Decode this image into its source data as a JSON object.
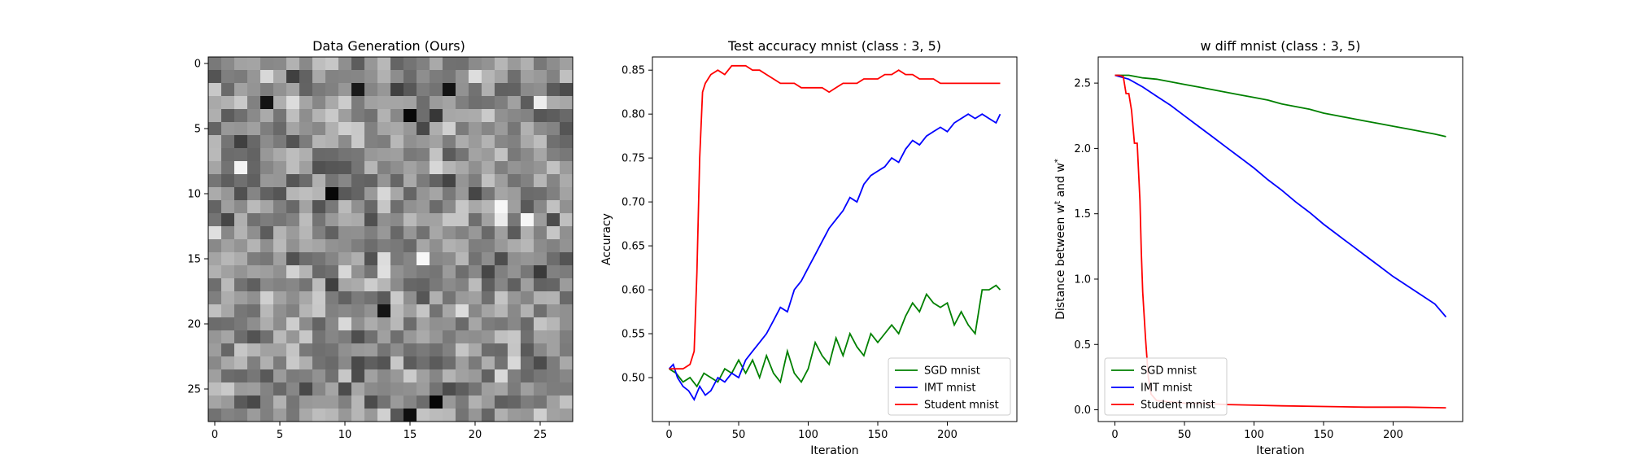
{
  "chart_data": [
    {
      "type": "heatmap",
      "title": "Data Generation (Ours)",
      "colormap": "gray",
      "shape": [
        28,
        28
      ],
      "xticks": [
        "0",
        "5",
        "10",
        "15",
        "20",
        "25"
      ],
      "yticks": [
        "0",
        "5",
        "10",
        "15",
        "20",
        "25"
      ],
      "xlim": [
        -0.5,
        27.5
      ],
      "ylim": [
        27.5,
        -0.5
      ],
      "seed": 7,
      "mean_intensity": 0.55,
      "intensity_spread": 0.16,
      "bright_cells": [
        [
          12,
          22
        ],
        [
          11,
          22
        ],
        [
          12,
          24
        ],
        [
          15,
          16
        ],
        [
          3,
          25
        ],
        [
          8,
          2
        ]
      ],
      "dark_cells": [
        [
          2,
          11
        ],
        [
          2,
          18
        ],
        [
          3,
          4
        ],
        [
          4,
          15
        ],
        [
          26,
          17
        ],
        [
          27,
          15
        ],
        [
          10,
          9
        ],
        [
          19,
          13
        ]
      ]
    },
    {
      "type": "line",
      "title": "Test accuracy mnist (class : 3, 5)",
      "xlabel": "Iteration",
      "ylabel": "Accuracy",
      "xlim": [
        -12,
        250
      ],
      "ylim": [
        0.45,
        0.865
      ],
      "xticks": [
        0,
        50,
        100,
        150,
        200
      ],
      "yticks": [
        0.5,
        0.55,
        0.6,
        0.65,
        0.7,
        0.75,
        0.8,
        0.85
      ],
      "ytick_labels": [
        "0.50",
        "0.55",
        "0.60",
        "0.65",
        "0.70",
        "0.75",
        "0.80",
        "0.85"
      ],
      "legend": "lower-right",
      "series": [
        {
          "name": "SGD mnist",
          "color": "#008000",
          "x": [
            0,
            5,
            10,
            15,
            20,
            25,
            30,
            35,
            40,
            45,
            50,
            55,
            60,
            65,
            70,
            75,
            80,
            85,
            90,
            95,
            100,
            105,
            110,
            115,
            120,
            125,
            130,
            135,
            140,
            145,
            150,
            155,
            160,
            165,
            170,
            175,
            180,
            185,
            190,
            195,
            200,
            205,
            210,
            215,
            220,
            225,
            230,
            235,
            238
          ],
          "y": [
            0.51,
            0.505,
            0.495,
            0.5,
            0.49,
            0.505,
            0.5,
            0.495,
            0.51,
            0.505,
            0.52,
            0.505,
            0.52,
            0.5,
            0.525,
            0.505,
            0.495,
            0.53,
            0.505,
            0.495,
            0.51,
            0.54,
            0.525,
            0.515,
            0.545,
            0.525,
            0.55,
            0.535,
            0.525,
            0.55,
            0.54,
            0.55,
            0.56,
            0.55,
            0.57,
            0.585,
            0.575,
            0.595,
            0.585,
            0.58,
            0.585,
            0.56,
            0.575,
            0.56,
            0.55,
            0.6,
            0.6,
            0.605,
            0.6
          ]
        },
        {
          "name": "IMT mnist",
          "color": "#0000ff",
          "x": [
            0,
            3,
            6,
            10,
            14,
            18,
            22,
            26,
            30,
            35,
            40,
            45,
            50,
            55,
            60,
            65,
            70,
            75,
            80,
            85,
            90,
            95,
            100,
            105,
            110,
            115,
            120,
            125,
            130,
            135,
            140,
            145,
            150,
            155,
            160,
            165,
            170,
            175,
            180,
            185,
            190,
            195,
            200,
            205,
            210,
            215,
            220,
            225,
            230,
            235,
            238
          ],
          "y": [
            0.51,
            0.515,
            0.5,
            0.49,
            0.485,
            0.475,
            0.49,
            0.48,
            0.485,
            0.5,
            0.495,
            0.505,
            0.5,
            0.52,
            0.53,
            0.54,
            0.55,
            0.565,
            0.58,
            0.575,
            0.6,
            0.61,
            0.625,
            0.64,
            0.655,
            0.67,
            0.68,
            0.69,
            0.705,
            0.7,
            0.72,
            0.73,
            0.735,
            0.74,
            0.75,
            0.745,
            0.76,
            0.77,
            0.765,
            0.775,
            0.78,
            0.785,
            0.78,
            0.79,
            0.795,
            0.8,
            0.795,
            0.8,
            0.795,
            0.79,
            0.8
          ]
        },
        {
          "name": "Student mnist",
          "color": "#ff0000",
          "x": [
            0,
            5,
            10,
            15,
            18,
            20,
            22,
            24,
            26,
            28,
            30,
            35,
            40,
            45,
            50,
            55,
            60,
            65,
            70,
            75,
            80,
            85,
            90,
            95,
            100,
            105,
            110,
            115,
            120,
            125,
            130,
            135,
            140,
            145,
            150,
            155,
            160,
            165,
            170,
            175,
            180,
            185,
            190,
            195,
            200,
            205,
            210,
            215,
            220,
            225,
            230,
            238
          ],
          "y": [
            0.51,
            0.51,
            0.51,
            0.515,
            0.53,
            0.62,
            0.75,
            0.825,
            0.835,
            0.84,
            0.845,
            0.85,
            0.845,
            0.855,
            0.855,
            0.855,
            0.85,
            0.85,
            0.845,
            0.84,
            0.835,
            0.835,
            0.835,
            0.83,
            0.83,
            0.83,
            0.83,
            0.825,
            0.83,
            0.835,
            0.835,
            0.835,
            0.84,
            0.84,
            0.84,
            0.845,
            0.845,
            0.85,
            0.845,
            0.845,
            0.84,
            0.84,
            0.84,
            0.835,
            0.835,
            0.835,
            0.835,
            0.835,
            0.835,
            0.835,
            0.835,
            0.835
          ]
        }
      ]
    },
    {
      "type": "line",
      "title": "w diff mnist (class : 3, 5)",
      "xlabel": "Iteration",
      "ylabel": "Distance between w^t and w^*",
      "xlim": [
        -12,
        250
      ],
      "ylim": [
        -0.09,
        2.7
      ],
      "xticks": [
        0,
        50,
        100,
        150,
        200
      ],
      "yticks": [
        0.0,
        0.5,
        1.0,
        1.5,
        2.0,
        2.5
      ],
      "ytick_labels": [
        "0.0",
        "0.5",
        "1.0",
        "1.5",
        "2.0",
        "2.5"
      ],
      "legend": "lower-left",
      "series": [
        {
          "name": "SGD mnist",
          "color": "#008000",
          "x": [
            0,
            10,
            20,
            30,
            40,
            50,
            60,
            70,
            80,
            90,
            100,
            110,
            120,
            130,
            140,
            150,
            160,
            170,
            180,
            190,
            200,
            210,
            220,
            230,
            238
          ],
          "y": [
            2.56,
            2.56,
            2.54,
            2.53,
            2.51,
            2.49,
            2.47,
            2.45,
            2.43,
            2.41,
            2.39,
            2.37,
            2.34,
            2.32,
            2.3,
            2.27,
            2.25,
            2.23,
            2.21,
            2.19,
            2.17,
            2.15,
            2.13,
            2.11,
            2.09
          ]
        },
        {
          "name": "IMT mnist",
          "color": "#0000ff",
          "x": [
            0,
            10,
            20,
            30,
            40,
            50,
            60,
            70,
            80,
            90,
            100,
            110,
            120,
            130,
            140,
            150,
            160,
            170,
            180,
            190,
            200,
            210,
            220,
            230,
            238
          ],
          "y": [
            2.56,
            2.53,
            2.47,
            2.4,
            2.33,
            2.25,
            2.17,
            2.09,
            2.01,
            1.93,
            1.85,
            1.76,
            1.68,
            1.59,
            1.51,
            1.42,
            1.34,
            1.26,
            1.18,
            1.1,
            1.02,
            0.95,
            0.88,
            0.81,
            0.71
          ]
        },
        {
          "name": "Student mnist",
          "color": "#ff0000",
          "x": [
            0,
            3,
            6,
            8,
            10,
            12,
            14,
            16,
            18,
            19,
            20,
            22,
            24,
            26,
            30,
            40,
            50,
            60,
            80,
            100,
            120,
            150,
            180,
            210,
            238
          ],
          "y": [
            2.56,
            2.56,
            2.55,
            2.42,
            2.42,
            2.29,
            2.04,
            2.04,
            1.6,
            1.2,
            0.9,
            0.55,
            0.25,
            0.12,
            0.07,
            0.06,
            0.05,
            0.05,
            0.04,
            0.035,
            0.03,
            0.025,
            0.02,
            0.02,
            0.015
          ]
        }
      ]
    }
  ]
}
